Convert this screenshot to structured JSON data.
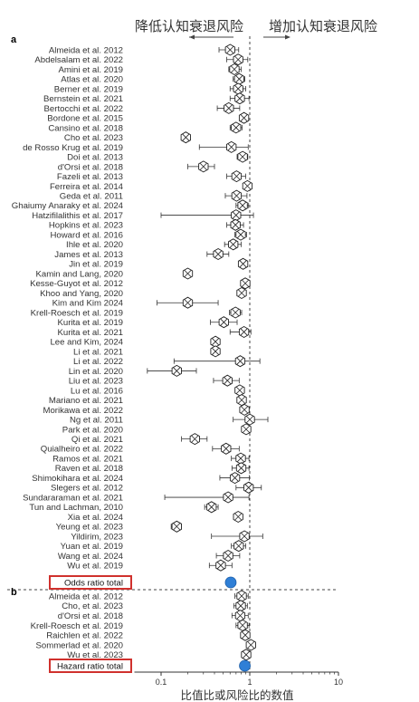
{
  "chart_data": {
    "type": "forest",
    "x_scale": "log",
    "xlim": [
      0.05,
      10
    ],
    "x_ticks": [
      "0.1",
      "1",
      "10"
    ],
    "reference_line": 1,
    "xlabel": "比值比或风险比的数值",
    "header_left": "降低认知衰退风险",
    "header_right": "增加认知衰退风险",
    "panels": [
      {
        "label": "a",
        "studies": [
          {
            "name": "Almeida et al. 2012",
            "est": 0.6,
            "lo": 0.45,
            "hi": 0.75
          },
          {
            "name": "Abdelsalam et al. 2022",
            "est": 0.74,
            "lo": 0.55,
            "hi": 0.95
          },
          {
            "name": "Amini et al. 2019",
            "est": 0.67,
            "lo": 0.58,
            "hi": 0.8
          },
          {
            "name": "Atlas et al. 2020",
            "est": 0.76,
            "lo": 0.65,
            "hi": 0.88
          },
          {
            "name": "Berner et al. 2019",
            "est": 0.74,
            "lo": 0.6,
            "hi": 0.9
          },
          {
            "name": "Bernstein et al. 2021",
            "est": 0.77,
            "lo": 0.6,
            "hi": 0.98
          },
          {
            "name": "Bertocchi et al. 2022",
            "est": 0.58,
            "lo": 0.43,
            "hi": 0.77
          },
          {
            "name": "Bordone et al. 2015",
            "est": 0.86,
            "lo": 0.8,
            "hi": 0.93
          },
          {
            "name": "Cansino et al. 2018",
            "est": 0.7,
            "lo": 0.6,
            "hi": 0.82
          },
          {
            "name": "Cho et al. 2023",
            "est": 0.19,
            "lo": 0.17,
            "hi": 0.21
          },
          {
            "name": "de Rosso Krug et al. 2019",
            "est": 0.62,
            "lo": 0.27,
            "hi": 0.96
          },
          {
            "name": "Doi et al. 2013",
            "est": 0.83,
            "lo": 0.72,
            "hi": 0.95
          },
          {
            "name": "d'Orsi et al. 2018",
            "est": 0.3,
            "lo": 0.2,
            "hi": 0.4
          },
          {
            "name": "Fazeli et al. 2013",
            "est": 0.71,
            "lo": 0.55,
            "hi": 0.9
          },
          {
            "name": "Ferreira et al. 2014",
            "est": 0.94,
            "lo": 0.85,
            "hi": 1.04
          },
          {
            "name": "Geda et al. 2011",
            "est": 0.71,
            "lo": 0.53,
            "hi": 0.93
          },
          {
            "name": "Ghaiumy Anaraky et al. 2024",
            "est": 0.83,
            "lo": 0.7,
            "hi": 0.97
          },
          {
            "name": "Hatzifilalithis et al. 2017",
            "est": 0.7,
            "lo": 0.1,
            "hi": 1.1
          },
          {
            "name": "Hopkins et al. 2023",
            "est": 0.69,
            "lo": 0.55,
            "hi": 0.85
          },
          {
            "name": "Howard et al. 2016",
            "est": 0.79,
            "lo": 0.68,
            "hi": 0.92
          },
          {
            "name": "Ihle et al. 2020",
            "est": 0.65,
            "lo": 0.52,
            "hi": 0.8
          },
          {
            "name": "James et al. 2013",
            "est": 0.44,
            "lo": 0.33,
            "hi": 0.58
          },
          {
            "name": "Jin et al. 2019",
            "est": 0.84,
            "lo": 0.78,
            "hi": 0.9
          },
          {
            "name": "Kamin and Lang, 2020",
            "est": 0.2,
            "lo": 0.18,
            "hi": 0.22
          },
          {
            "name": "Kesse-Guyot et al. 2012",
            "est": 0.89,
            "lo": 0.8,
            "hi": 0.99
          },
          {
            "name": "Khoo and Yang, 2020",
            "est": 0.81,
            "lo": 0.72,
            "hi": 0.91
          },
          {
            "name": "Kim and Kim 2024",
            "est": 0.2,
            "lo": 0.09,
            "hi": 0.44
          },
          {
            "name": "Krell-Roesch et al. 2019",
            "est": 0.69,
            "lo": 0.59,
            "hi": 0.81
          },
          {
            "name": "Kurita et al. 2019",
            "est": 0.51,
            "lo": 0.36,
            "hi": 0.72
          },
          {
            "name": "Kurita et al. 2021",
            "est": 0.86,
            "lo": 0.6,
            "hi": 1.03
          },
          {
            "name": "Lee and Kim, 2024",
            "est": 0.41,
            "lo": 0.38,
            "hi": 0.44
          },
          {
            "name": "Li et al. 2021",
            "est": 0.41,
            "lo": 0.38,
            "hi": 0.44
          },
          {
            "name": "Li et al. 2022",
            "est": 0.78,
            "lo": 0.14,
            "hi": 1.3
          },
          {
            "name": "Lin et al. 2020",
            "est": 0.15,
            "lo": 0.07,
            "hi": 0.25
          },
          {
            "name": "Liu et al. 2023",
            "est": 0.56,
            "lo": 0.39,
            "hi": 0.76
          },
          {
            "name": "Lu et al. 2016",
            "est": 0.77,
            "lo": 0.7,
            "hi": 0.86
          },
          {
            "name": "Mariano et al. 2021",
            "est": 0.81,
            "lo": 0.73,
            "hi": 0.9
          },
          {
            "name": "Morikawa et al. 2022",
            "est": 0.87,
            "lo": 0.8,
            "hi": 0.95
          },
          {
            "name": "Ng et al. 2011",
            "est": 1.0,
            "lo": 0.65,
            "hi": 1.6
          },
          {
            "name": "Park et al. 2020",
            "est": 0.91,
            "lo": 0.86,
            "hi": 0.97
          },
          {
            "name": "Qi et al. 2021",
            "est": 0.24,
            "lo": 0.17,
            "hi": 0.33
          },
          {
            "name": "Quialheiro et al. 2022",
            "est": 0.54,
            "lo": 0.38,
            "hi": 0.76
          },
          {
            "name": "Ramos et al. 2021",
            "est": 0.79,
            "lo": 0.62,
            "hi": 0.98
          },
          {
            "name": "Raven et al. 2018",
            "est": 0.8,
            "lo": 0.63,
            "hi": 0.98
          },
          {
            "name": "Shimokihara et al. 2024",
            "est": 0.68,
            "lo": 0.46,
            "hi": 0.99
          },
          {
            "name": "Slegers et al. 2012",
            "est": 0.97,
            "lo": 0.7,
            "hi": 1.35
          },
          {
            "name": "Sundararaman et al. 2021",
            "est": 0.57,
            "lo": 0.11,
            "hi": 0.98
          },
          {
            "name": "Tun and Lachman, 2010",
            "est": 0.37,
            "lo": 0.31,
            "hi": 0.44
          },
          {
            "name": "Xia et al. 2024",
            "est": 0.74,
            "lo": 0.66,
            "hi": 0.83
          },
          {
            "name": "Yeung et al. 2023",
            "est": 0.15,
            "lo": 0.13,
            "hi": 0.17
          },
          {
            "name": "Yildirim, 2023",
            "est": 0.87,
            "lo": 0.37,
            "hi": 1.4
          },
          {
            "name": "Yuan et al. 2019",
            "est": 0.75,
            "lo": 0.62,
            "hi": 0.9
          },
          {
            "name": "Wang et al. 2024",
            "est": 0.57,
            "lo": 0.42,
            "hi": 0.77
          },
          {
            "name": "Wu et al. 2019",
            "est": 0.47,
            "lo": 0.35,
            "hi": 0.63
          }
        ],
        "total": {
          "name": "Odds ratio total",
          "est": 0.61,
          "lo": 0.57,
          "hi": 0.65
        }
      },
      {
        "label": "b",
        "studies": [
          {
            "name": "Almeida et al. 2012",
            "est": 0.81,
            "lo": 0.68,
            "hi": 0.96
          },
          {
            "name": "Cho, et al. 2023",
            "est": 0.79,
            "lo": 0.66,
            "hi": 0.94
          },
          {
            "name": "d'Orsi et al. 2018",
            "est": 0.78,
            "lo": 0.63,
            "hi": 0.96
          },
          {
            "name": "Krell-Roesch et al. 2019",
            "est": 0.83,
            "lo": 0.7,
            "hi": 0.98
          },
          {
            "name": "Raichlen et al. 2022",
            "est": 0.89,
            "lo": 0.82,
            "hi": 0.96
          },
          {
            "name": "Sommerlad et al. 2020",
            "est": 1.03,
            "lo": 0.93,
            "hi": 1.14
          },
          {
            "name": "Wu et al. 2023",
            "est": 0.91,
            "lo": 0.82,
            "hi": 1.01
          }
        ],
        "total": {
          "name": "Hazard ratio total",
          "est": 0.88,
          "lo": 0.83,
          "hi": 0.93
        }
      }
    ],
    "colors": {
      "total_marker": "#2f7fd6",
      "highlight_box": "#d0312d",
      "line": "#333333"
    }
  }
}
